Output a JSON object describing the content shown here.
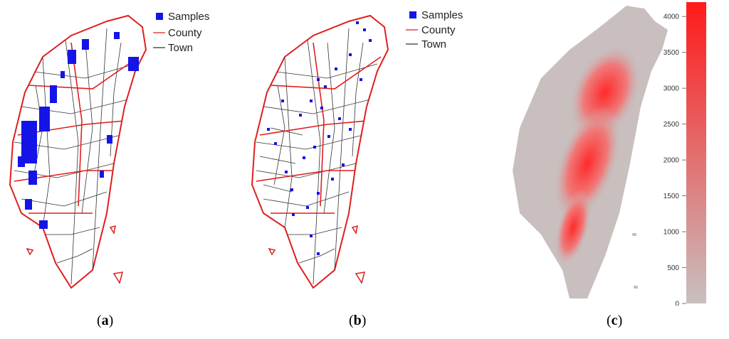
{
  "panels": [
    {
      "id": "a",
      "caption": "a",
      "legend": {
        "samples": "Samples",
        "county": "County",
        "town": "Town"
      }
    },
    {
      "id": "b",
      "caption": "b",
      "legend": {
        "samples": "Samples",
        "county": "County",
        "town": "Town"
      }
    },
    {
      "id": "c",
      "caption": "c"
    }
  ],
  "elevation_scale": {
    "ticks": [
      0,
      500,
      1000,
      1500,
      2000,
      2500,
      3000,
      3500,
      4000
    ],
    "range": [
      0,
      4200
    ],
    "color_low": "#c8c0c0",
    "color_high": "#ff1a1a"
  },
  "colors": {
    "samples": "#1414e6",
    "county": "#e01e1e",
    "town": "#333333"
  }
}
